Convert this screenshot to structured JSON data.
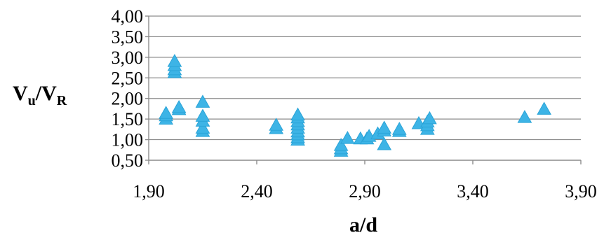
{
  "chart_data": {
    "type": "scatter",
    "title": "",
    "xlabel": "a/d",
    "ylabel": {
      "main": "V",
      "sub1": "u",
      "sep": "/V",
      "sub2": "R"
    },
    "xlim": [
      1.9,
      3.9
    ],
    "ylim": [
      0.5,
      4.0
    ],
    "x_ticks": [
      "1,90",
      "2,40",
      "2,90",
      "3,40",
      "3,90"
    ],
    "y_ticks": [
      "0,50",
      "1,00",
      "1,50",
      "2,00",
      "2,50",
      "3,00",
      "3,50",
      "4,00"
    ],
    "grid": "horizontal",
    "legend": "none",
    "marker": "triangle",
    "marker_color": "#3DB4E6",
    "series": [
      {
        "x": [
          1.98,
          1.98,
          1.98,
          2.02,
          2.02,
          2.02,
          2.02,
          2.04,
          2.04,
          2.15,
          2.15,
          2.15,
          2.15,
          2.15,
          2.49,
          2.49,
          2.59,
          2.59,
          2.59,
          2.59,
          2.59,
          2.59,
          2.59,
          2.59,
          2.59,
          2.79,
          2.79,
          2.79,
          2.82,
          2.88,
          2.91,
          2.92,
          2.96,
          2.99,
          2.99,
          2.99,
          3.06,
          3.06,
          3.15,
          3.19,
          3.19,
          3.19,
          3.2,
          3.64,
          3.73
        ],
        "y": [
          1.52,
          1.6,
          1.66,
          2.65,
          2.72,
          2.82,
          2.92,
          1.75,
          1.8,
          1.22,
          1.3,
          1.47,
          1.59,
          1.93,
          1.29,
          1.37,
          1.01,
          1.07,
          1.14,
          1.21,
          1.3,
          1.38,
          1.46,
          1.55,
          1.62,
          0.74,
          0.8,
          0.88,
          1.05,
          1.04,
          1.04,
          1.1,
          1.16,
          0.9,
          1.23,
          1.3,
          1.22,
          1.27,
          1.41,
          1.27,
          1.36,
          1.45,
          1.53,
          1.56,
          1.76
        ]
      }
    ]
  }
}
